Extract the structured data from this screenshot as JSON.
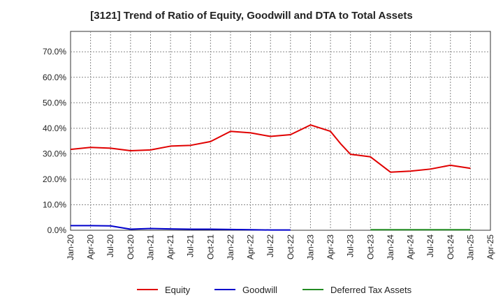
{
  "chart_data": {
    "type": "line",
    "title": "[3121]  Trend of Ratio of Equity, Goodwill and DTA to Total Assets",
    "xlabel": "",
    "ylabel": "",
    "ylim": [
      0,
      0.78
    ],
    "yticks": [
      0,
      0.1,
      0.2,
      0.3,
      0.4,
      0.5,
      0.6,
      0.7
    ],
    "ytick_labels": [
      "0.0%",
      "10.0%",
      "20.0%",
      "30.0%",
      "40.0%",
      "50.0%",
      "60.0%",
      "70.0%"
    ],
    "x_tick_labels": [
      "Jan-20",
      "Apr-20",
      "Jul-20",
      "Oct-20",
      "Jan-21",
      "Apr-21",
      "Jul-21",
      "Oct-21",
      "Jan-22",
      "Apr-22",
      "Jul-22",
      "Oct-22",
      "Jan-23",
      "Apr-23",
      "Jul-23",
      "Oct-23",
      "Jan-24",
      "Apr-24",
      "Jul-24",
      "Oct-24",
      "Jan-25",
      "Apr-25"
    ],
    "grid": true,
    "legend_position": "bottom",
    "series": [
      {
        "name": "Equity",
        "color": "#e00000",
        "points": [
          [
            0,
            0.317
          ],
          [
            1,
            0.325
          ],
          [
            2,
            0.322
          ],
          [
            3,
            0.312
          ],
          [
            4,
            0.315
          ],
          [
            5,
            0.33
          ],
          [
            6,
            0.333
          ],
          [
            7,
            0.348
          ],
          [
            8,
            0.388
          ],
          [
            9,
            0.382
          ],
          [
            10,
            0.368
          ],
          [
            11,
            0.375
          ],
          [
            12,
            0.413
          ],
          [
            13,
            0.388
          ],
          [
            13.5,
            0.34
          ],
          [
            14,
            0.298
          ],
          [
            15,
            0.288
          ],
          [
            16,
            0.228
          ],
          [
            17,
            0.232
          ],
          [
            18,
            0.24
          ],
          [
            19,
            0.255
          ],
          [
            20,
            0.243
          ]
        ]
      },
      {
        "name": "Goodwill",
        "color": "#0000cc",
        "points": [
          [
            0,
            0.018
          ],
          [
            1,
            0.018
          ],
          [
            2,
            0.017
          ],
          [
            3,
            0.004
          ],
          [
            4,
            0.007
          ],
          [
            5,
            0.005
          ],
          [
            6,
            0.004
          ],
          [
            7,
            0.004
          ],
          [
            8,
            0.003
          ],
          [
            9,
            0.002
          ],
          [
            10,
            0.001
          ],
          [
            11,
            0.001
          ]
        ]
      },
      {
        "name": "Deferred Tax Assets",
        "color": "#228b22",
        "points": [
          [
            15,
            0.002
          ],
          [
            16,
            0.002
          ],
          [
            17,
            0.002
          ],
          [
            18,
            0.002
          ],
          [
            19,
            0.002
          ],
          [
            20,
            0.002
          ]
        ]
      }
    ]
  }
}
